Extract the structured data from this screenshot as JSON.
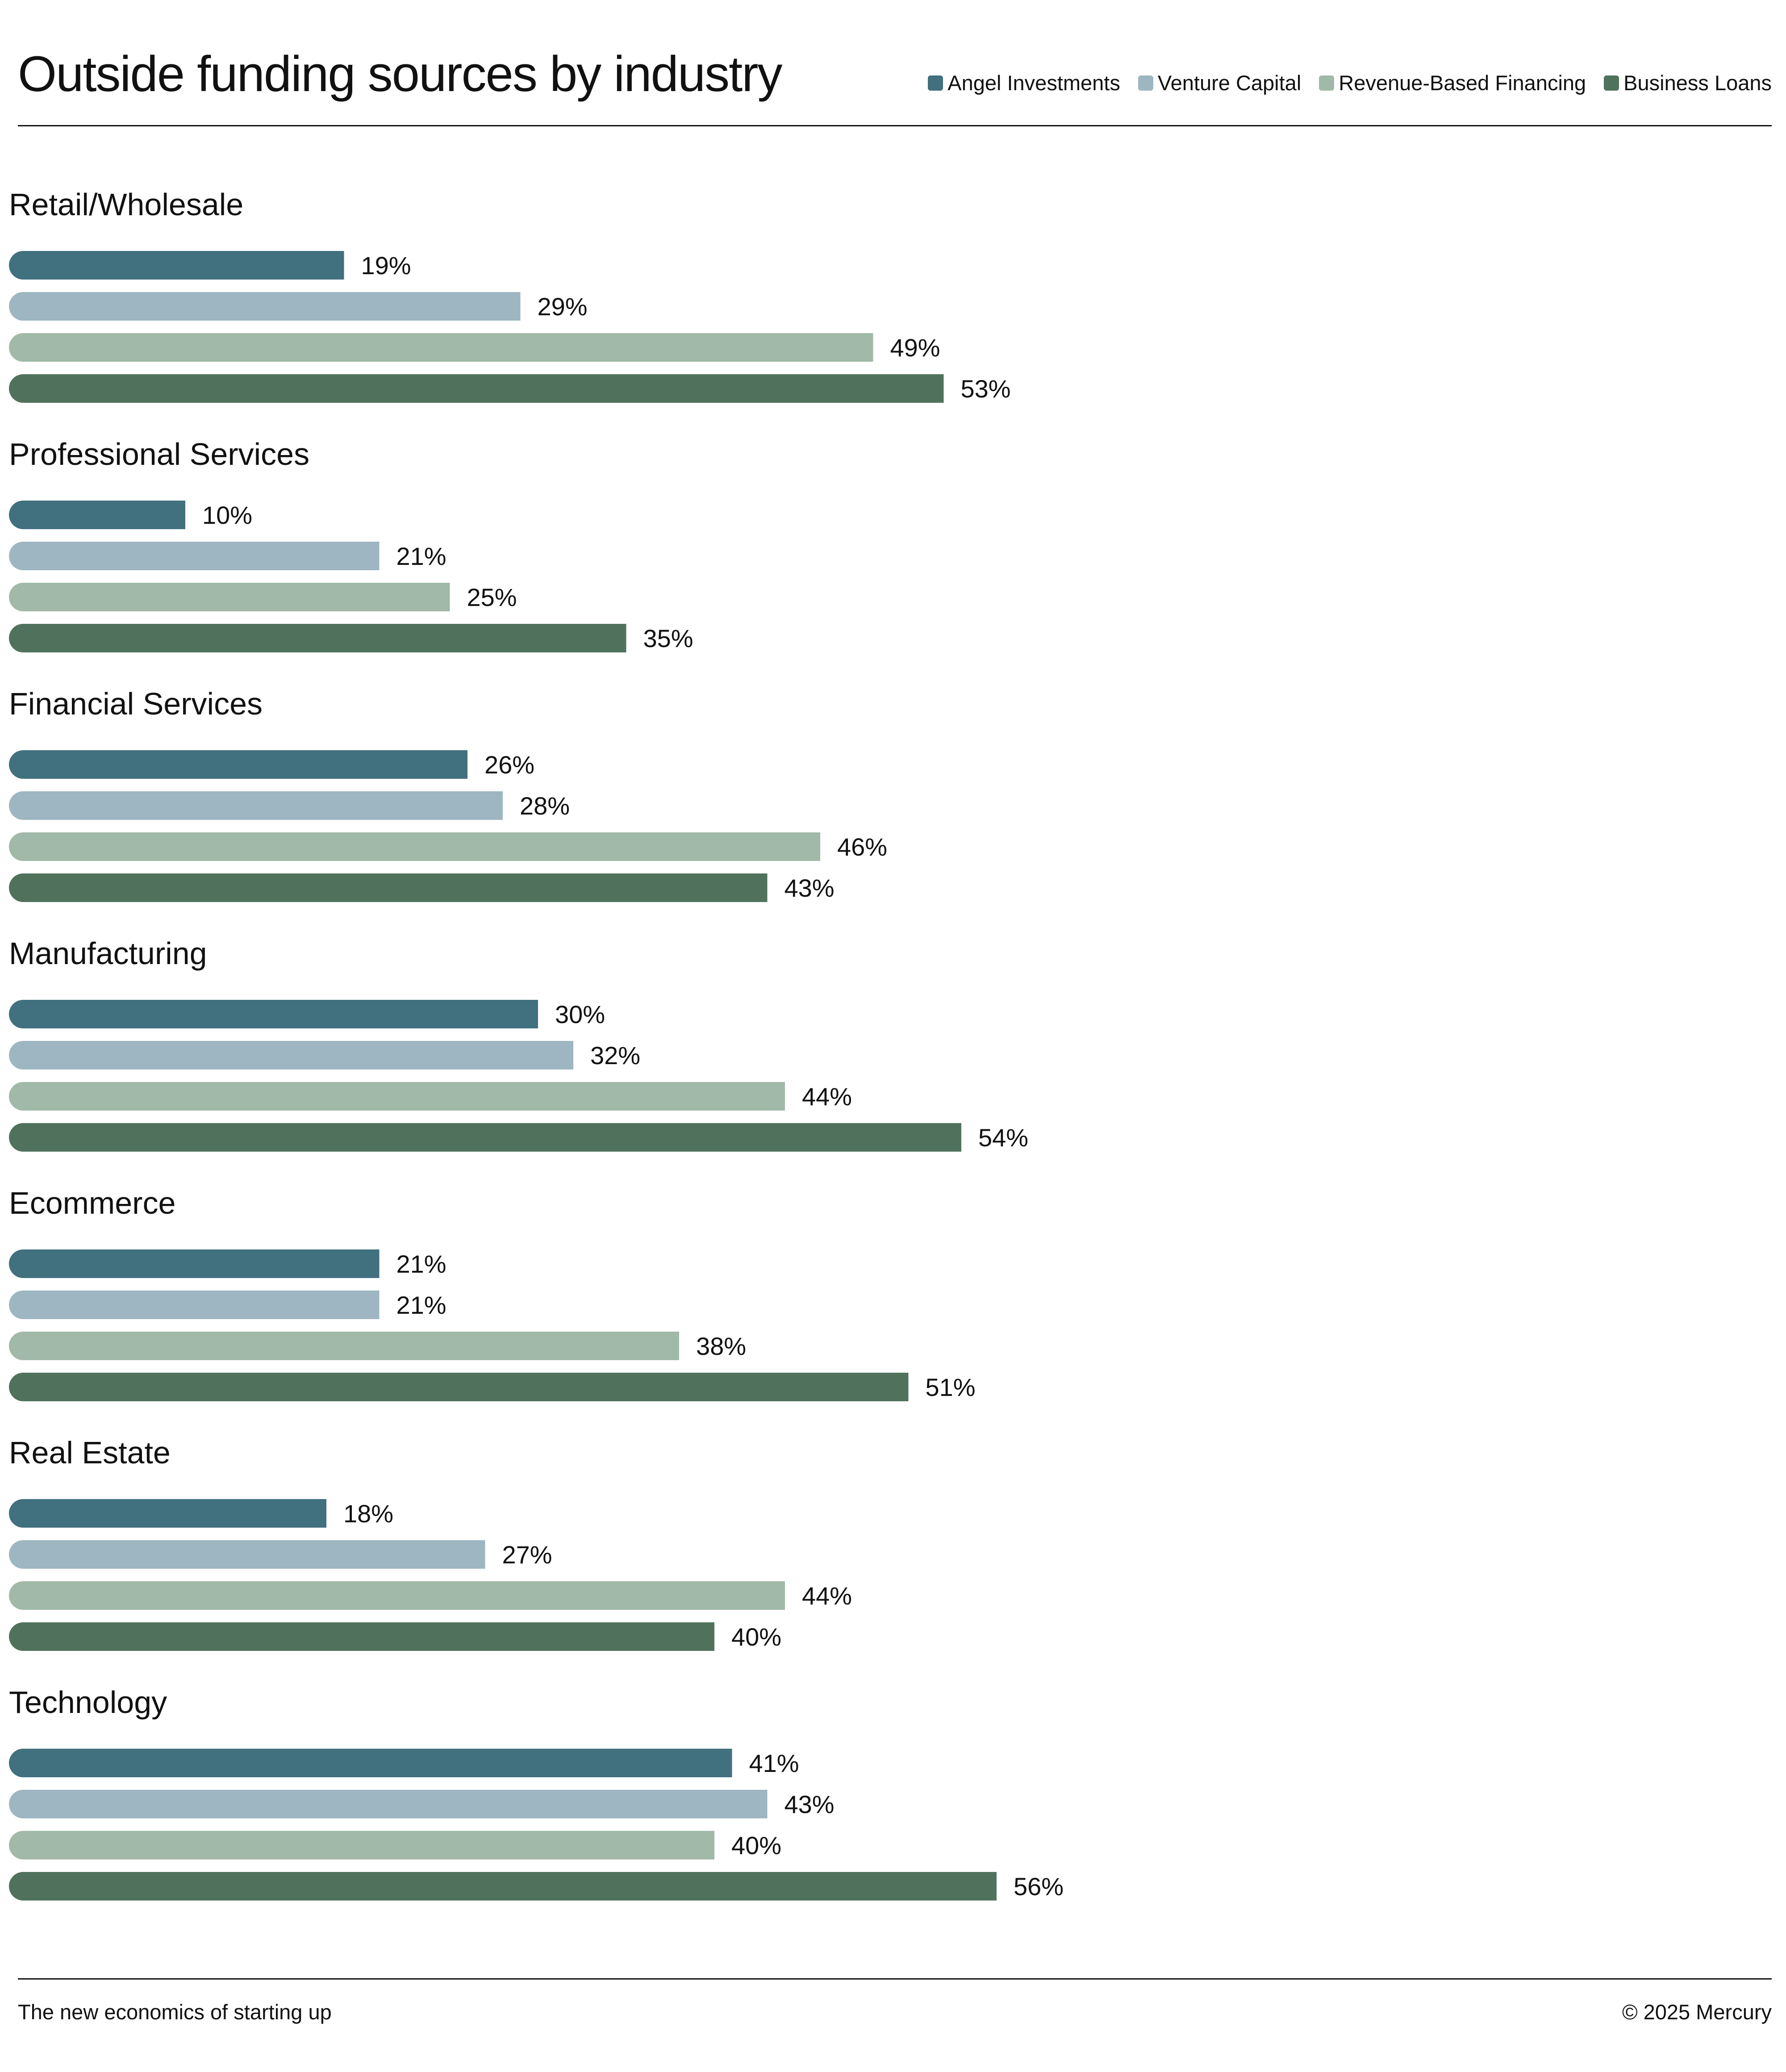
{
  "header": {
    "title": "Outside funding sources by industry"
  },
  "legend": [
    {
      "label": "Angel Investments",
      "color": "#41707f"
    },
    {
      "label": "Venture Capital",
      "color": "#9db6c1"
    },
    {
      "label": "Revenue-Based Financing",
      "color": "#a1b9a8"
    },
    {
      "label": "Business Loans",
      "color": "#50725d"
    }
  ],
  "footer": {
    "left": "The new economics of starting up",
    "right": "© 2025 Mercury"
  },
  "chart_data": {
    "type": "bar",
    "orientation": "horizontal",
    "title": "Outside funding sources by industry",
    "value_suffix": "%",
    "xlim": [
      0,
      100
    ],
    "grid": false,
    "legend_position": "top-right",
    "categories": [
      "Retail/Wholesale",
      "Professional Services",
      "Financial Services",
      "Manufacturing",
      "Ecommerce",
      "Real Estate",
      "Technology"
    ],
    "series": [
      {
        "name": "Angel Investments",
        "color": "#41707f",
        "values": [
          19,
          10,
          26,
          30,
          21,
          18,
          41
        ]
      },
      {
        "name": "Venture Capital",
        "color": "#9db6c1",
        "values": [
          29,
          21,
          28,
          32,
          21,
          27,
          43
        ]
      },
      {
        "name": "Revenue-Based Financing",
        "color": "#a1b9a8",
        "values": [
          49,
          25,
          46,
          44,
          38,
          44,
          40
        ]
      },
      {
        "name": "Business Loans",
        "color": "#50725d",
        "values": [
          53,
          35,
          43,
          54,
          51,
          40,
          56
        ]
      }
    ]
  }
}
